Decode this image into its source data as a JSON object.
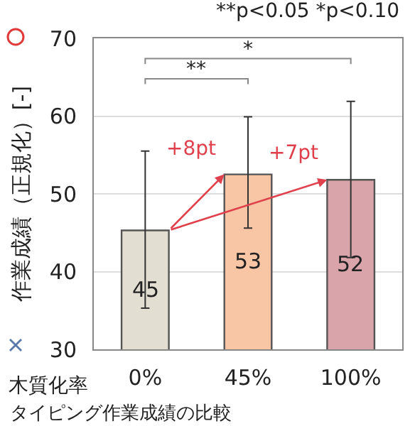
{
  "chart_data": {
    "type": "bar",
    "xlabel": "木質化率",
    "ylabel": "作業成績（正規化）[-]",
    "categories": [
      "0%",
      "45%",
      "100%"
    ],
    "values": [
      45.3,
      52.5,
      51.8
    ],
    "value_labels": [
      "45",
      "53",
      "52"
    ],
    "colors": [
      "#e2dfd2",
      "#f8c6a4",
      "#daa4ab"
    ],
    "errors": [
      [
        35.3,
        55.5
      ],
      [
        45.6,
        59.9
      ],
      [
        41.8,
        61.9
      ]
    ],
    "ylim": [
      30,
      70
    ],
    "yticks": [
      30,
      40,
      50,
      60,
      70
    ],
    "grid": "y",
    "annotations": [
      "**p<0.05 *p<0.10",
      "**",
      "*",
      {
        "text": "+8pt",
        "x": "45%",
        "y": 52.5
      },
      {
        "text": "+7pt",
        "x": "100%",
        "y": 51.8
      },
      "タイピング作業成績の比較"
    ]
  }
}
